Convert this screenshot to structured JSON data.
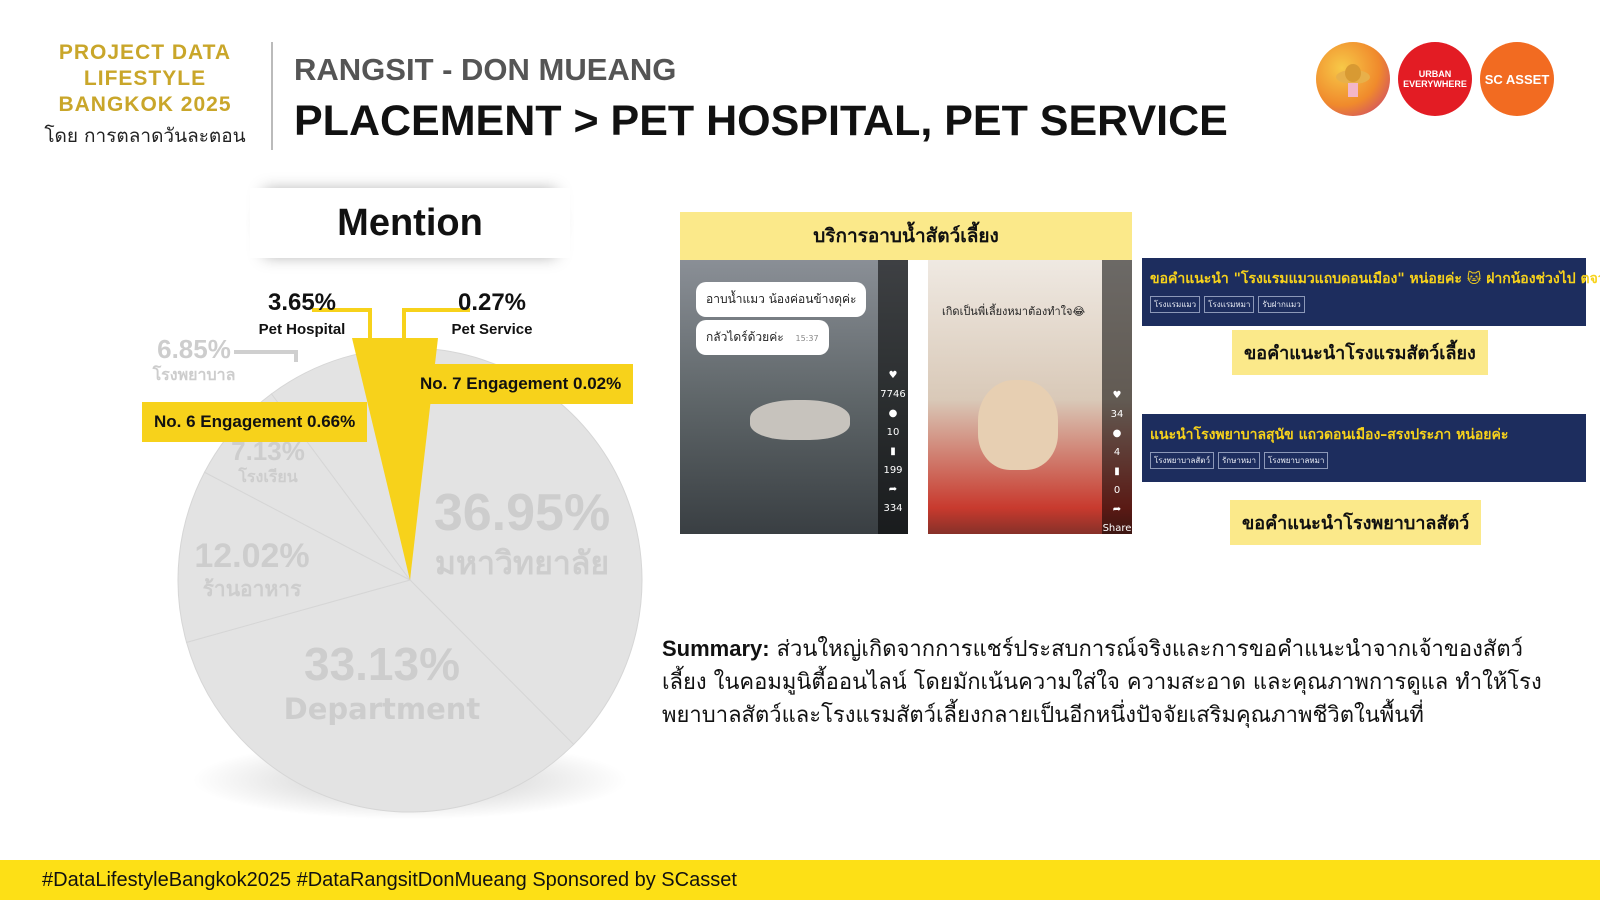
{
  "brand": {
    "line1": "PROJECT DATA",
    "line2": "LIFESTYLE",
    "line3": "BANGKOK 2025",
    "by": "โดย การตลาดวันละตอน"
  },
  "header": {
    "subtitle": "RANGSIT - DON MUEANG",
    "title": "PLACEMENT > PET HOSPITAL, PET SERVICE"
  },
  "logos": {
    "urban": "URBAN EVERYWHERE",
    "sc": "SC ASSET"
  },
  "mention_title": "Mention",
  "chart_data": {
    "type": "pie",
    "title": "Mention",
    "slices": [
      {
        "label": "มหาวิทยาลัย",
        "value": 36.95,
        "display": "36.95%",
        "color": "#e3e3e3",
        "highlight": false
      },
      {
        "label": "Department",
        "value": 33.13,
        "display": "33.13%",
        "color": "#e3e3e3",
        "highlight": false
      },
      {
        "label": "ร้านอาหาร",
        "value": 12.02,
        "display": "12.02%",
        "color": "#e3e3e3",
        "highlight": false
      },
      {
        "label": "โรงเรียน",
        "value": 7.13,
        "display": "7.13%",
        "color": "#e3e3e3",
        "highlight": false
      },
      {
        "label": "โรงพยาบาล",
        "value": 6.85,
        "display": "6.85%",
        "color": "#e3e3e3",
        "highlight": false
      },
      {
        "label": "Pet Hospital",
        "value": 3.65,
        "display": "3.65%",
        "color": "#f7d21b",
        "highlight": true
      },
      {
        "label": "Pet Service",
        "value": 0.27,
        "display": "0.27%",
        "color": "#f7d21b",
        "highlight": true
      }
    ],
    "annotations": [
      {
        "text": "No. 6 Engagement 0.66%"
      },
      {
        "text": "No. 7 Engagement 0.02%"
      }
    ]
  },
  "screens": {
    "header": "บริการอาบน้ำสัตว์เลี้ยง",
    "shot1": {
      "bubble1": "อาบน้ำแมว น้องค่อนข้างดุค่ะ",
      "bubble2": "กลัวไดร์ด้วยค่ะ",
      "time": "15:37",
      "likes": "7746",
      "comments": "10",
      "saves": "199",
      "shares": "334"
    },
    "shot2": {
      "caption": "เกิดเป็นพี่เลี้ยงหมาต้องทำใจ😂",
      "likes": "34",
      "comments": "4",
      "saves": "0",
      "shares": "Share"
    }
  },
  "posts": [
    {
      "title": "ขอคำแนะนำ \"โรงแรมแมวแถบดอนเมือง\" หน่อยค่ะ 🐱 ฝากน้องช่วงไป ตจว.",
      "tags": [
        "โรงแรมแมว",
        "โรงแรมหมา",
        "รับฝากแมว"
      ],
      "label": "ขอคำแนะนำโรงแรมสัตว์เลี้ยง"
    },
    {
      "title": "แนะนำโรงพยาบาลสุนัข แถวดอนเมือง–สรงประภา หน่อยค่ะ",
      "tags": [
        "โรงพยาบาลสัตว์",
        "รักษาหมา",
        "โรงพยาบาลหมา"
      ],
      "label": "ขอคำแนะนำโรงพยาบาลสัตว์"
    }
  ],
  "summary": {
    "label": "Summary:",
    "text": " ส่วนใหญ่เกิดจากการแชร์ประสบการณ์จริงและการขอคำแนะนำจากเจ้าของสัตว์เลี้ยง ในคอมมูนิตี้ออนไลน์ โดยมักเน้นความใส่ใจ ความสะอาด และคุณภาพการดูแล ทำให้โรงพยาบาลสัตว์และโรงแรมสัตว์เลี้ยงกลายเป็นอีกหนึ่งปัจจัยเสริมคุณภาพชีวิตในพื้นที่"
  },
  "footer": "#DataLifestyleBangkok2025 #DataRangsitDonMueang Sponsored by SCasset"
}
